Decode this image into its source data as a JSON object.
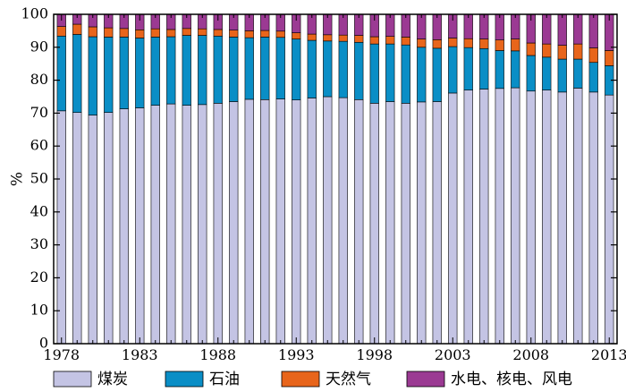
{
  "chart_data": {
    "type": "bar",
    "stacked": true,
    "title": "",
    "xlabel": "",
    "ylabel": "%",
    "ylim": [
      0,
      100
    ],
    "yticks": [
      0,
      10,
      20,
      30,
      40,
      50,
      60,
      70,
      80,
      90,
      100
    ],
    "xtick_labels": [
      "1978",
      "1983",
      "1988",
      "1993",
      "1998",
      "2003",
      "2008",
      "2013"
    ],
    "categories": [
      "1978",
      "1979",
      "1980",
      "1981",
      "1982",
      "1983",
      "1984",
      "1985",
      "1986",
      "1987",
      "1988",
      "1989",
      "1990",
      "1991",
      "1992",
      "1993",
      "1994",
      "1995",
      "1996",
      "1997",
      "1998",
      "1999",
      "2000",
      "2001",
      "2002",
      "2003",
      "2004",
      "2005",
      "2006",
      "2007",
      "2008",
      "2009",
      "2010",
      "2011",
      "2012",
      "2013"
    ],
    "legend_position": "bottom",
    "grid": false,
    "series": [
      {
        "name": "煤炭",
        "color": "#c4c4e4",
        "values": [
          70.7,
          70.2,
          69.4,
          70.2,
          71.3,
          71.6,
          72.4,
          72.8,
          72.4,
          72.6,
          73.0,
          73.5,
          74.2,
          74.1,
          74.3,
          74.0,
          74.6,
          75.0,
          74.7,
          74.1,
          73.0,
          73.5,
          73.0,
          73.4,
          73.5,
          76.1,
          77.0,
          77.3,
          77.5,
          77.7,
          76.7,
          77.0,
          76.4,
          77.6,
          76.4,
          75.5
        ]
      },
      {
        "name": "石油",
        "color": "#0a8ec6",
        "values": [
          22.7,
          23.7,
          23.8,
          22.9,
          21.8,
          21.2,
          20.7,
          20.4,
          21.2,
          21.0,
          20.4,
          19.6,
          18.7,
          19.0,
          18.7,
          18.5,
          17.5,
          16.9,
          17.1,
          17.4,
          18.0,
          17.5,
          17.7,
          16.6,
          16.2,
          14.1,
          12.9,
          12.3,
          11.5,
          11.2,
          10.8,
          10.0,
          10.0,
          8.8,
          9.0,
          8.9
        ]
      },
      {
        "name": "天然气",
        "color": "#e8651b",
        "values": [
          2.9,
          3.1,
          3.0,
          2.8,
          2.6,
          2.5,
          2.5,
          2.2,
          2.1,
          2.0,
          2.0,
          2.1,
          2.1,
          2.0,
          1.9,
          1.9,
          1.9,
          1.9,
          1.9,
          2.1,
          2.2,
          2.3,
          2.4,
          2.5,
          2.6,
          2.6,
          2.7,
          2.9,
          3.2,
          3.6,
          3.8,
          4.0,
          4.2,
          4.6,
          4.4,
          4.6
        ]
      },
      {
        "name": "水电、核电、风电",
        "color": "#9b3a93",
        "values": [
          3.7,
          3.0,
          3.8,
          4.1,
          4.3,
          4.7,
          4.4,
          4.6,
          4.3,
          4.4,
          4.6,
          4.8,
          5.0,
          4.9,
          5.1,
          5.6,
          6.0,
          6.2,
          6.3,
          6.4,
          6.8,
          6.7,
          6.9,
          7.5,
          7.7,
          7.2,
          7.4,
          7.5,
          7.8,
          7.5,
          8.7,
          9.0,
          9.4,
          9.0,
          10.2,
          11.0
        ]
      }
    ]
  }
}
